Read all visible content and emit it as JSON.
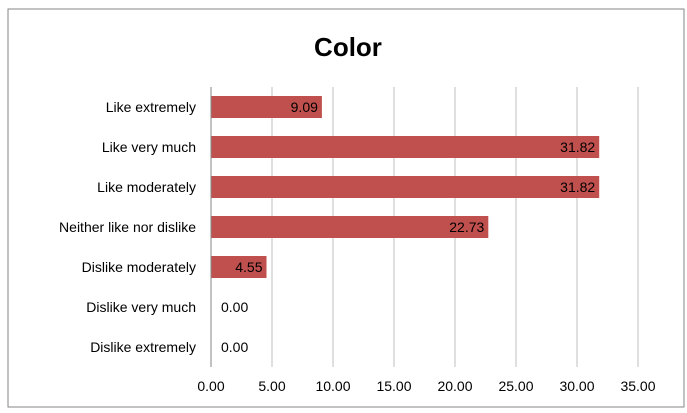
{
  "chart_data": {
    "type": "bar",
    "orientation": "horizontal",
    "title": "Color",
    "xlabel": "",
    "ylabel": "",
    "categories": [
      "Like extremely",
      "Like very much",
      "Like moderately",
      "Neither like nor dislike",
      "Dislike moderately",
      "Dislike very much",
      "Dislike extremely"
    ],
    "values": [
      9.09,
      31.82,
      31.82,
      22.73,
      4.55,
      0.0,
      0.0
    ],
    "value_labels": [
      "9.09",
      "31.82",
      "31.82",
      "22.73",
      "4.55",
      "0.00",
      "0.00"
    ],
    "xlim": [
      0,
      35
    ],
    "x_ticks": [
      0,
      5,
      10,
      15,
      20,
      25,
      30,
      35
    ],
    "x_tick_labels": [
      "0.00",
      "5.00",
      "10.00",
      "15.00",
      "20.00",
      "25.00",
      "30.00",
      "35.00"
    ],
    "grid": "vertical",
    "legend": "none",
    "colors": {
      "bar": "#c0504d",
      "grid": "#bfbfbf",
      "axis": "#868686",
      "border": "#868686",
      "text": "#000000",
      "background": "#ffffff"
    }
  }
}
